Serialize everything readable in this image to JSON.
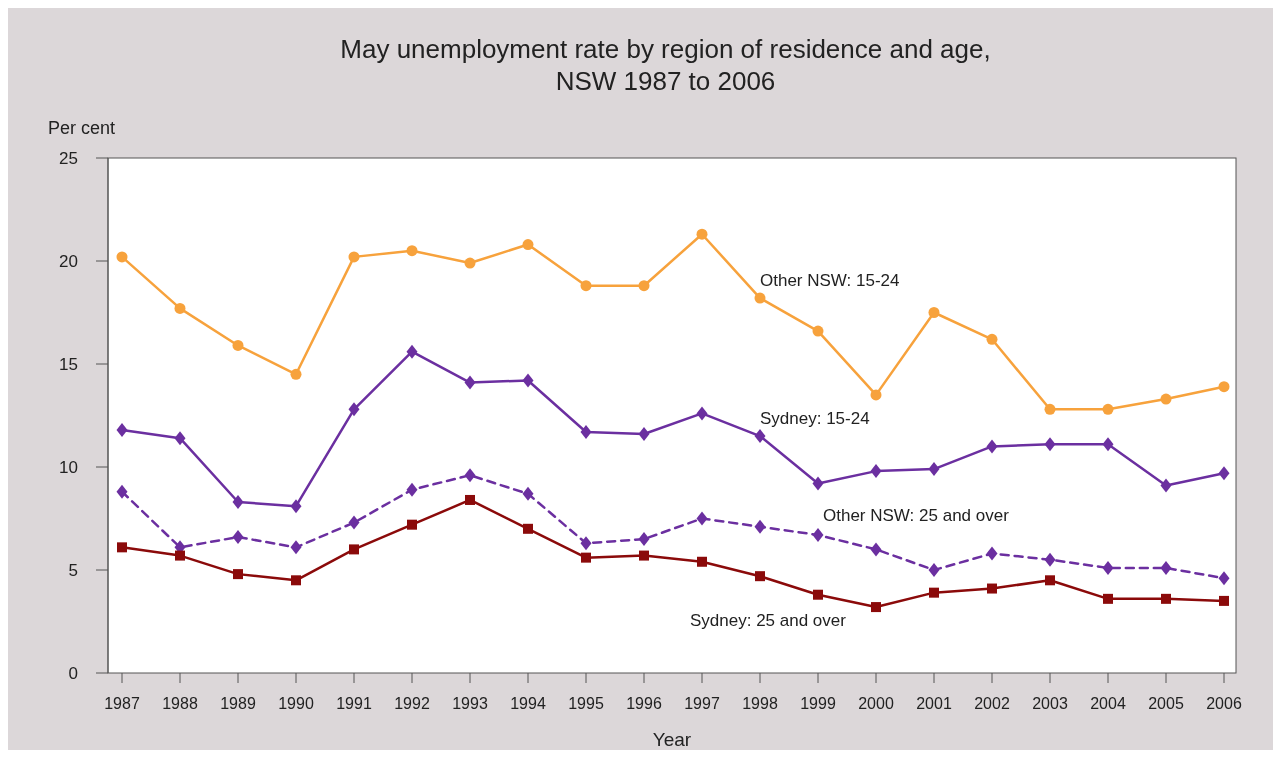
{
  "chart_data": {
    "type": "line",
    "title": "May unemployment rate by region of residence and age,\nNSW 1987 to 2006",
    "xlabel": "Year",
    "ylabel": "Per cent",
    "categories": [
      "1987",
      "1988",
      "1989",
      "1990",
      "1991",
      "1992",
      "1993",
      "1994",
      "1995",
      "1996",
      "1997",
      "1998",
      "1999",
      "2000",
      "2001",
      "2002",
      "2003",
      "2004",
      "2005",
      "2006"
    ],
    "series": [
      {
        "name": "Other NSW: 15-24",
        "color": "#f7a23c",
        "marker": "circle",
        "line_style": "solid",
        "values": [
          20.2,
          17.7,
          15.9,
          14.5,
          20.2,
          20.5,
          19.9,
          20.8,
          18.8,
          18.8,
          21.3,
          18.2,
          16.6,
          13.5,
          17.5,
          16.2,
          12.8,
          12.8,
          13.3,
          13.9
        ]
      },
      {
        "name": "Sydney: 15-24",
        "color": "#6b2fa0",
        "marker": "diamond",
        "line_style": "solid",
        "values": [
          11.8,
          11.4,
          8.3,
          8.1,
          12.8,
          15.6,
          14.1,
          14.2,
          11.7,
          11.6,
          12.6,
          11.5,
          9.2,
          9.8,
          9.9,
          11.0,
          11.1,
          11.1,
          9.1,
          9.7
        ]
      },
      {
        "name": "Other NSW: 25 and over",
        "color": "#6b2fa0",
        "marker": "diamond",
        "line_style": "dashed",
        "values": [
          8.8,
          6.1,
          6.6,
          6.1,
          7.3,
          8.9,
          9.6,
          8.7,
          6.3,
          6.5,
          7.5,
          7.1,
          6.7,
          6.0,
          5.0,
          5.8,
          5.5,
          5.1,
          5.1,
          4.6
        ]
      },
      {
        "name": "Sydney: 25 and over",
        "color": "#8b0a0a",
        "marker": "square",
        "line_style": "solid",
        "values": [
          6.1,
          5.7,
          4.8,
          4.5,
          6.0,
          7.2,
          8.4,
          7.0,
          5.6,
          5.7,
          5.4,
          4.7,
          3.8,
          3.2,
          3.9,
          4.1,
          4.5,
          3.6,
          3.6,
          3.5
        ]
      }
    ],
    "ylim": [
      0,
      25
    ],
    "yticks": [
      0,
      5,
      10,
      15,
      20,
      25
    ],
    "grid": false,
    "legend": false
  }
}
